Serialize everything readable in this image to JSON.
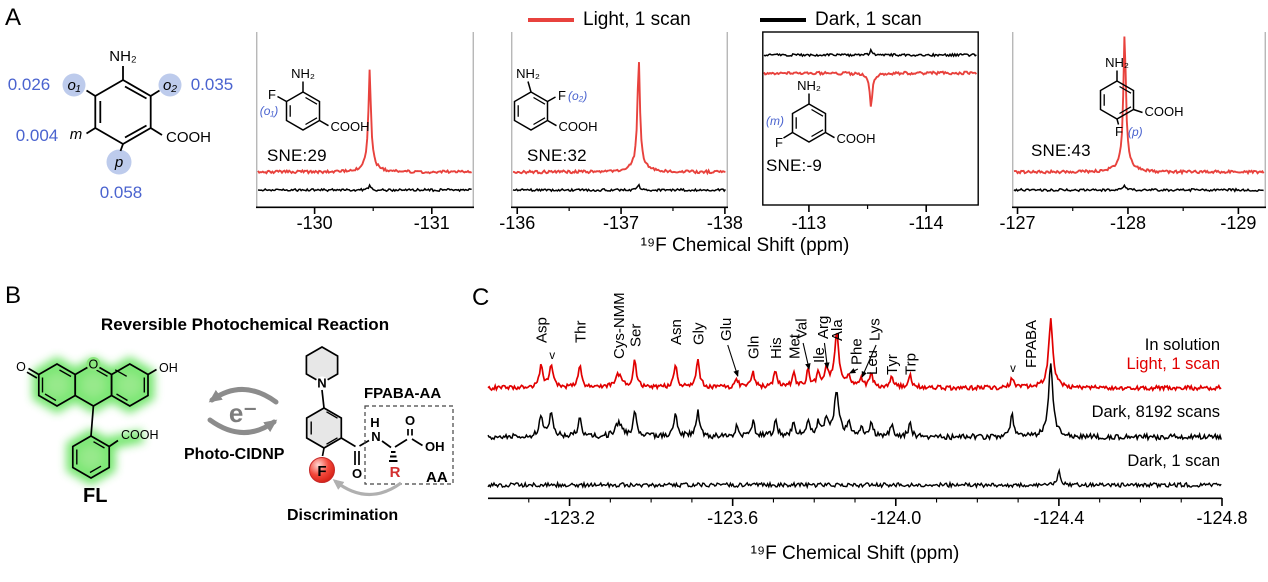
{
  "colors": {
    "red_a": "#e8423d",
    "red_c": "#e10000",
    "blue": "#4a63cf",
    "highlight": "#bdcbec",
    "gray_fill": "#e7e7e7",
    "green_glow": "#6be463",
    "green_fill": "#8ce77f",
    "arrow_gray": "#8c8c8c",
    "light_arrow": "#b0b0b0",
    "f_red": "#ee3b30"
  },
  "panelA": {
    "label": "A",
    "legend": {
      "light": {
        "label": "Light, 1 scan",
        "color": "#e8423d"
      },
      "dark": {
        "label": "Dark, 1 scan",
        "color": "#000000"
      }
    },
    "xlabel": "¹⁹F Chemical Shift (ppm)",
    "molecule": {
      "amine": "NH₂",
      "acid": "COOH",
      "fluorine": "F",
      "positions": {
        "o1": {
          "label": "o₁",
          "value": "0.026"
        },
        "o2": {
          "label": "o₂",
          "value": "0.035"
        },
        "m": {
          "label": "m",
          "value": "0.004"
        },
        "p": {
          "label": "p",
          "value": "0.058"
        }
      }
    }
  },
  "panelB": {
    "label": "B",
    "title": "Reversible Photochemical Reaction",
    "fl": {
      "name": "FL",
      "o_ketone": "O",
      "o_ring": "O",
      "oh": "OH",
      "cooh": "COOH"
    },
    "cycle": {
      "electron": "e⁻",
      "process": "Photo-CIDNP"
    },
    "fpaba": {
      "n_pip": "N",
      "f": "F",
      "h": "H",
      "n_amide": "N",
      "o_carbonyl": "O",
      "o_acid": "O",
      "oh": "OH",
      "r": "R",
      "compound_label": "FPABA-AA",
      "aa_label": "AA",
      "discrimination": "Discrimination"
    }
  },
  "panelC": {
    "label": "C",
    "xlabel": "¹⁹F Chemical Shift (ppm)",
    "annotations": {
      "solution": "In solution",
      "light": "Light, 1 scan",
      "dark_long": "Dark, 8192 scans",
      "dark_short": "Dark, 1 scan"
    }
  },
  "chart_data": [
    {
      "id": "spectrum-o1",
      "type": "line",
      "sne": "SNE:29",
      "position_label": "(o₁)",
      "xlim": [
        -129.5,
        -131.36
      ],
      "xticks": [
        {
          "ppm": -130,
          "label": "-130"
        },
        {
          "ppm": -131,
          "label": "-131"
        }
      ],
      "minor_ticks": [
        -130.5
      ],
      "peak": {
        "ppm": -130.47,
        "height": 92
      },
      "boxed": false,
      "series": [
        "Light, 1 scan",
        "Dark, 1 scan"
      ]
    },
    {
      "id": "spectrum-o2",
      "type": "line",
      "sne": "SNE:32",
      "position_label": "(o₂)",
      "xlim": [
        -135.94,
        -138.03
      ],
      "xticks": [
        {
          "ppm": -136,
          "label": "-136"
        },
        {
          "ppm": -137,
          "label": "-137"
        },
        {
          "ppm": -138,
          "label": "-138"
        }
      ],
      "minor_ticks": [
        -136.5,
        -137.5
      ],
      "peak": {
        "ppm": -137.17,
        "height": 100
      },
      "boxed": false,
      "series": [
        "Light, 1 scan",
        "Dark, 1 scan"
      ]
    },
    {
      "id": "spectrum-m",
      "type": "line",
      "sne": "SNE:-9",
      "position_label": "(m)",
      "xlim": [
        -112.6,
        -114.45
      ],
      "xticks": [
        {
          "ppm": -113,
          "label": "-113"
        },
        {
          "ppm": -114,
          "label": "-114"
        }
      ],
      "minor_ticks": [
        -113.5
      ],
      "peak": {
        "ppm": -113.53,
        "height": -30
      },
      "boxed": true,
      "series": [
        "Light, 1 scan",
        "Dark, 1 scan"
      ]
    },
    {
      "id": "spectrum-p",
      "type": "line",
      "sne": "SNE:43",
      "position_label": "(p)",
      "xlim": [
        -126.95,
        -129.25
      ],
      "xticks": [
        {
          "ppm": -127,
          "label": "-127"
        },
        {
          "ppm": -128,
          "label": "-128"
        },
        {
          "ppm": -129,
          "label": "-129"
        }
      ],
      "minor_ticks": [
        -127.5,
        -128.5
      ],
      "peak": {
        "ppm": -127.97,
        "height": 124
      },
      "boxed": false,
      "series": [
        "Light, 1 scan",
        "Dark, 1 scan"
      ]
    },
    {
      "id": "spectrum-mixture",
      "type": "line",
      "xlim": [
        -123.0,
        -124.8
      ],
      "xticks": [
        {
          "ppm": -123.2,
          "label": "-123.2"
        },
        {
          "ppm": -123.6,
          "label": "-123.6"
        },
        {
          "ppm": -124.0,
          "label": "-124.0"
        },
        {
          "ppm": -124.4,
          "label": "-124.4"
        },
        {
          "ppm": -124.8,
          "label": "-124.8"
        }
      ],
      "minor_step": 0.1,
      "series": [
        "Light, 1 scan",
        "Dark, 8192 scans",
        "Dark, 1 scan"
      ],
      "peaks": [
        {
          "label": "Asp",
          "ppm": -123.13,
          "h": 20,
          "h2": 20,
          "yb": 60
        },
        {
          "label": "",
          "ppm": -123.155,
          "h": 22,
          "h2": 22,
          "marker": "v"
        },
        {
          "label": "Thr",
          "ppm": -123.225,
          "h": 20,
          "h2": 19,
          "yb": 60
        },
        {
          "label": "Cys-NMM",
          "ppm": -123.32,
          "h": 12,
          "h2": 12,
          "w": 4,
          "yb": 76
        },
        {
          "label": "Ser",
          "ppm": -123.36,
          "h": 24,
          "h2": 22,
          "yb": 64
        },
        {
          "label": "Asn",
          "ppm": -123.46,
          "h": 21,
          "h2": 20,
          "yb": 62
        },
        {
          "label": "Gly",
          "ppm": -123.515,
          "h": 26,
          "h2": 24,
          "yb": 62
        },
        {
          "label": "Glu",
          "ppm": -123.61,
          "h": 8,
          "h2": 9,
          "yb": 58,
          "dx": -11,
          "arrow": true
        },
        {
          "label": "Gln",
          "ppm": -123.65,
          "h": 14,
          "h2": 14,
          "yb": 76
        },
        {
          "label": "His",
          "ppm": -123.705,
          "h": 16,
          "h2": 15,
          "yb": 76
        },
        {
          "label": "Met",
          "ppm": -123.75,
          "h": 13,
          "h2": 13,
          "yb": 76
        },
        {
          "label": "Val",
          "ppm": -123.785,
          "h": 15,
          "h2": 14,
          "yb": 56,
          "dx": -7,
          "arrow": true
        },
        {
          "label": "Ile",
          "ppm": -123.81,
          "h": 13,
          "h2": 13,
          "yb": 80
        },
        {
          "label": "Arg",
          "ppm": -123.83,
          "h": 16,
          "h2": 15,
          "yb": 56,
          "dx": -4,
          "arrow": true
        },
        {
          "label": "Ala",
          "ppm": -123.855,
          "h": 48,
          "h2": 42,
          "w": 2.5,
          "yb": 58
        },
        {
          "label": "Phe",
          "ppm": -123.885,
          "h": 11,
          "h2": 11,
          "yb": 82,
          "dx": 7,
          "arrow": true
        },
        {
          "label": "Lys",
          "ppm": -123.915,
          "h": 7,
          "h2": 8,
          "yb": 58,
          "dx": 13,
          "arrow": true
        },
        {
          "label": "Leu",
          "ppm": -123.94,
          "h": 13,
          "h2": 12,
          "yb": 92
        },
        {
          "label": "Tyr",
          "ppm": -123.99,
          "h": 11,
          "h2": 11,
          "yb": 92
        },
        {
          "label": "Trp",
          "ppm": -124.035,
          "h": 13,
          "h2": 12,
          "yb": 92
        },
        {
          "label": "",
          "ppm": -124.285,
          "h": 9,
          "h2": 22,
          "marker": "v"
        },
        {
          "label": "FPABA",
          "ppm": -124.38,
          "h": 62,
          "h2": 66,
          "w": 2.4,
          "yb": 85,
          "dx": -20
        }
      ],
      "dark_short_peaks": [
        {
          "ppm": -124.4,
          "h": 16,
          "w": 1.5
        }
      ]
    }
  ]
}
